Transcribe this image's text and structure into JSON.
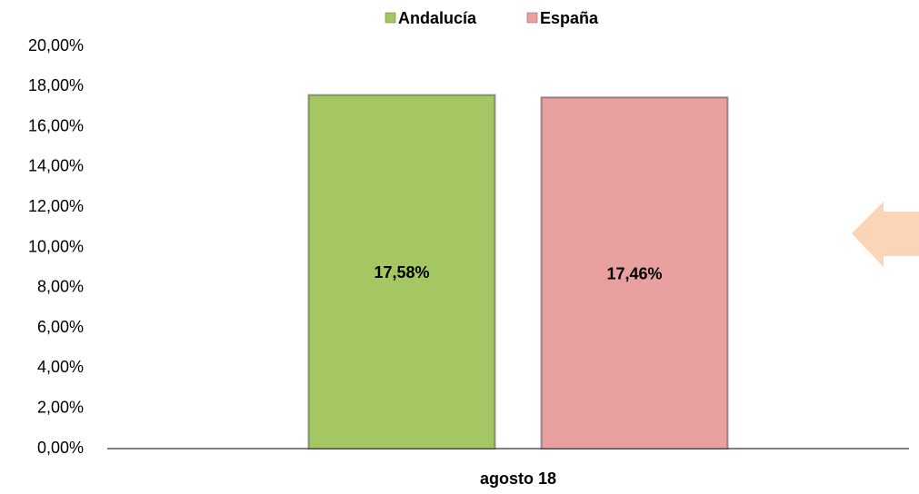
{
  "chart_data": {
    "type": "bar",
    "categories": [
      "agosto 18"
    ],
    "series": [
      {
        "name": "Andalucía",
        "color": "#a5c763",
        "values": [
          17.58
        ],
        "value_labels": [
          "17,58%"
        ]
      },
      {
        "name": "España",
        "color": "#e8a0a0",
        "values": [
          17.46
        ],
        "value_labels": [
          "17,46%"
        ]
      }
    ],
    "ylim": [
      0,
      20
    ],
    "yticks": [
      {
        "value": 0,
        "label": "0,00%"
      },
      {
        "value": 2,
        "label": "2,00%"
      },
      {
        "value": 4,
        "label": "4,00%"
      },
      {
        "value": 6,
        "label": "6,00%"
      },
      {
        "value": 8,
        "label": "8,00%"
      },
      {
        "value": 10,
        "label": "10,00%"
      },
      {
        "value": 12,
        "label": "12,00%"
      },
      {
        "value": 14,
        "label": "14,00%"
      },
      {
        "value": 16,
        "label": "16,00%"
      },
      {
        "value": 18,
        "label": "18,00%"
      },
      {
        "value": 20,
        "label": "20,00%"
      }
    ],
    "legend": "top"
  }
}
